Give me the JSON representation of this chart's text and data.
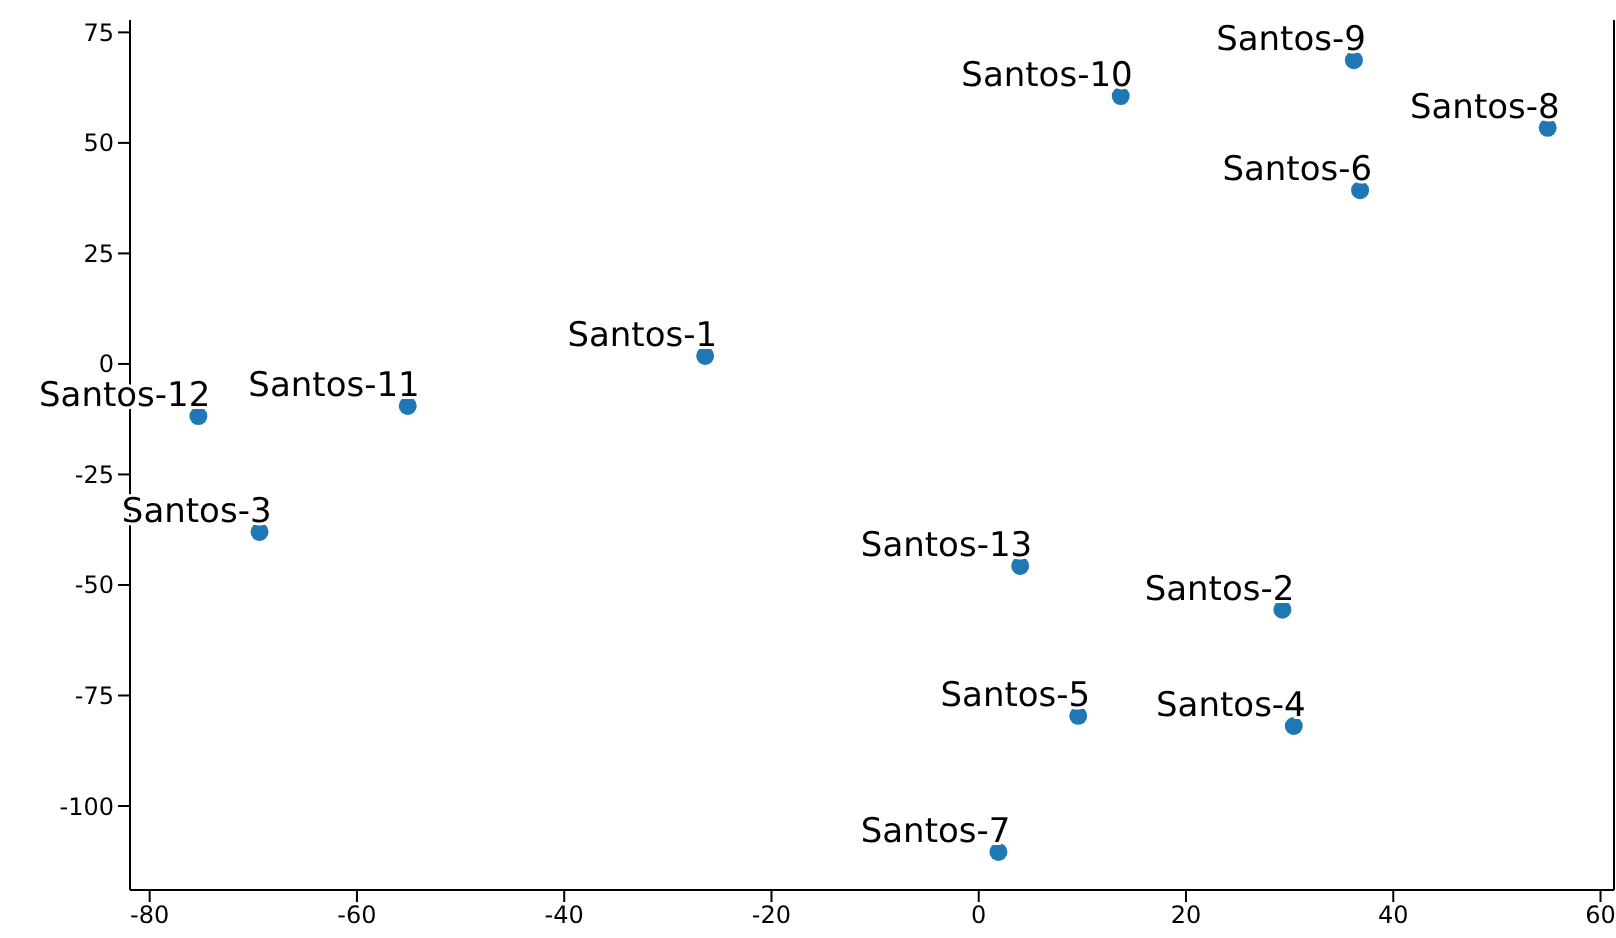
{
  "chart_data": {
    "type": "scatter",
    "x": [
      -26.4,
      29.3,
      -69.4,
      30.4,
      9.6,
      36.8,
      1.9,
      54.9,
      36.2,
      13.7,
      -55.1,
      -75.3,
      4.0
    ],
    "values": [
      1.8,
      -55.6,
      -38,
      -81.9,
      -79.6,
      39.3,
      -110.4,
      53.4,
      68.7,
      60.6,
      -9.5,
      -11.8,
      -45.7
    ],
    "color": "#1f77b4",
    "marker": "circle",
    "annotations": [
      {
        "text": "Santos-1",
        "x": -26.4,
        "y": 1.8
      },
      {
        "text": "Santos-2",
        "x": 29.3,
        "y": -55.6
      },
      {
        "text": "Santos-3",
        "x": -69.4,
        "y": -38
      },
      {
        "text": "Santos-4",
        "x": 30.4,
        "y": -81.9
      },
      {
        "text": "Santos-5",
        "x": 9.6,
        "y": -79.6
      },
      {
        "text": "Santos-6",
        "x": 36.8,
        "y": 39.3
      },
      {
        "text": "Santos-7",
        "x": 1.9,
        "y": -110.4
      },
      {
        "text": "Santos-8",
        "x": 54.9,
        "y": 53.4
      },
      {
        "text": "Santos-9",
        "x": 36.2,
        "y": 68.7
      },
      {
        "text": "Santos-10",
        "x": 13.7,
        "y": 60.6
      },
      {
        "text": "Santos-11",
        "x": -55.1,
        "y": -9.5
      },
      {
        "text": "Santos-12",
        "x": -75.3,
        "y": -11.8
      },
      {
        "text": "Santos-13",
        "x": 4.0,
        "y": -45.7
      }
    ],
    "xlim": [
      -81.9,
      61.3
    ],
    "xticks": [
      -80,
      -60,
      -40,
      -20,
      0,
      20,
      40,
      60
    ],
    "ylim": [
      -119,
      77.8
    ],
    "yticks": [
      -100,
      -75,
      -50,
      -25,
      0,
      25,
      50,
      75
    ],
    "grid": false,
    "legend": false
  }
}
